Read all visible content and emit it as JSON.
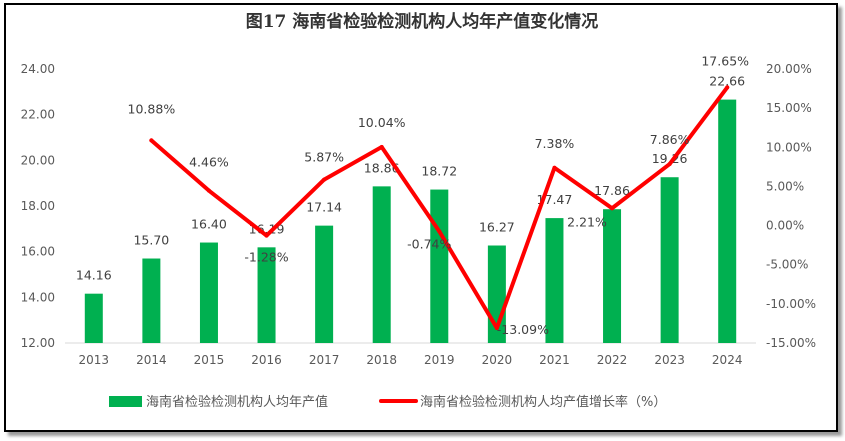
{
  "chart_data": {
    "type": "bar+line",
    "title": "图17   海南省检验检测机构人均年产值变化情况",
    "categories": [
      "2013",
      "2014",
      "2015",
      "2016",
      "2017",
      "2018",
      "2019",
      "2020",
      "2021",
      "2022",
      "2023",
      "2024"
    ],
    "series": [
      {
        "name": "海南省检验检测机构人均年产值",
        "type": "bar",
        "axis": "left",
        "color": "#00b050",
        "values": [
          14.16,
          15.7,
          16.4,
          16.19,
          17.14,
          18.86,
          18.72,
          16.27,
          17.47,
          17.86,
          19.26,
          22.66
        ]
      },
      {
        "name": "海南省检验检测机构人均产值增长率（%）",
        "type": "line",
        "axis": "right",
        "color": "#ff0000",
        "values": [
          null,
          10.88,
          4.46,
          -1.28,
          5.87,
          10.04,
          -0.74,
          -13.09,
          7.38,
          2.21,
          7.86,
          17.65
        ]
      }
    ],
    "left_axis": {
      "min": 12,
      "max": 24,
      "step": 2,
      "ticks": [
        "12.00",
        "14.00",
        "16.00",
        "18.00",
        "20.00",
        "22.00",
        "24.00"
      ]
    },
    "right_axis": {
      "min": -15,
      "max": 20,
      "step": 5,
      "ticks": [
        "-15.00%",
        "-10.00%",
        "-5.00%",
        "0.00%",
        "5.00%",
        "10.00%",
        "15.00%",
        "20.00%"
      ]
    },
    "grid": false,
    "legend": "bottom"
  }
}
